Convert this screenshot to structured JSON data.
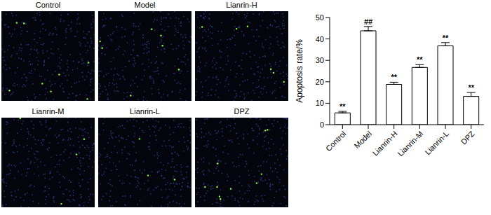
{
  "panels": {
    "titles": [
      "Control",
      "Model",
      "Lianrin-H",
      "Lianrin-M",
      "Lianrin-L",
      "DPZ"
    ]
  },
  "chart_data": {
    "type": "bar",
    "categories": [
      "Control",
      "Model",
      "Lianrin-H",
      "Lianrin-M",
      "Lianrin-L",
      "DPZ"
    ],
    "values": [
      5.5,
      43.8,
      18.8,
      26.7,
      36.8,
      13.2
    ],
    "error": [
      0.7,
      2.0,
      1.0,
      1.3,
      1.5,
      1.8
    ],
    "significance": [
      "**",
      "##",
      "**",
      "**",
      "**",
      "**"
    ],
    "color": "#ffffff",
    "y_label": "Apoptosis rate/%",
    "ylim": [
      0,
      50
    ],
    "yticks": [
      0,
      10,
      20,
      30,
      40,
      50
    ]
  }
}
